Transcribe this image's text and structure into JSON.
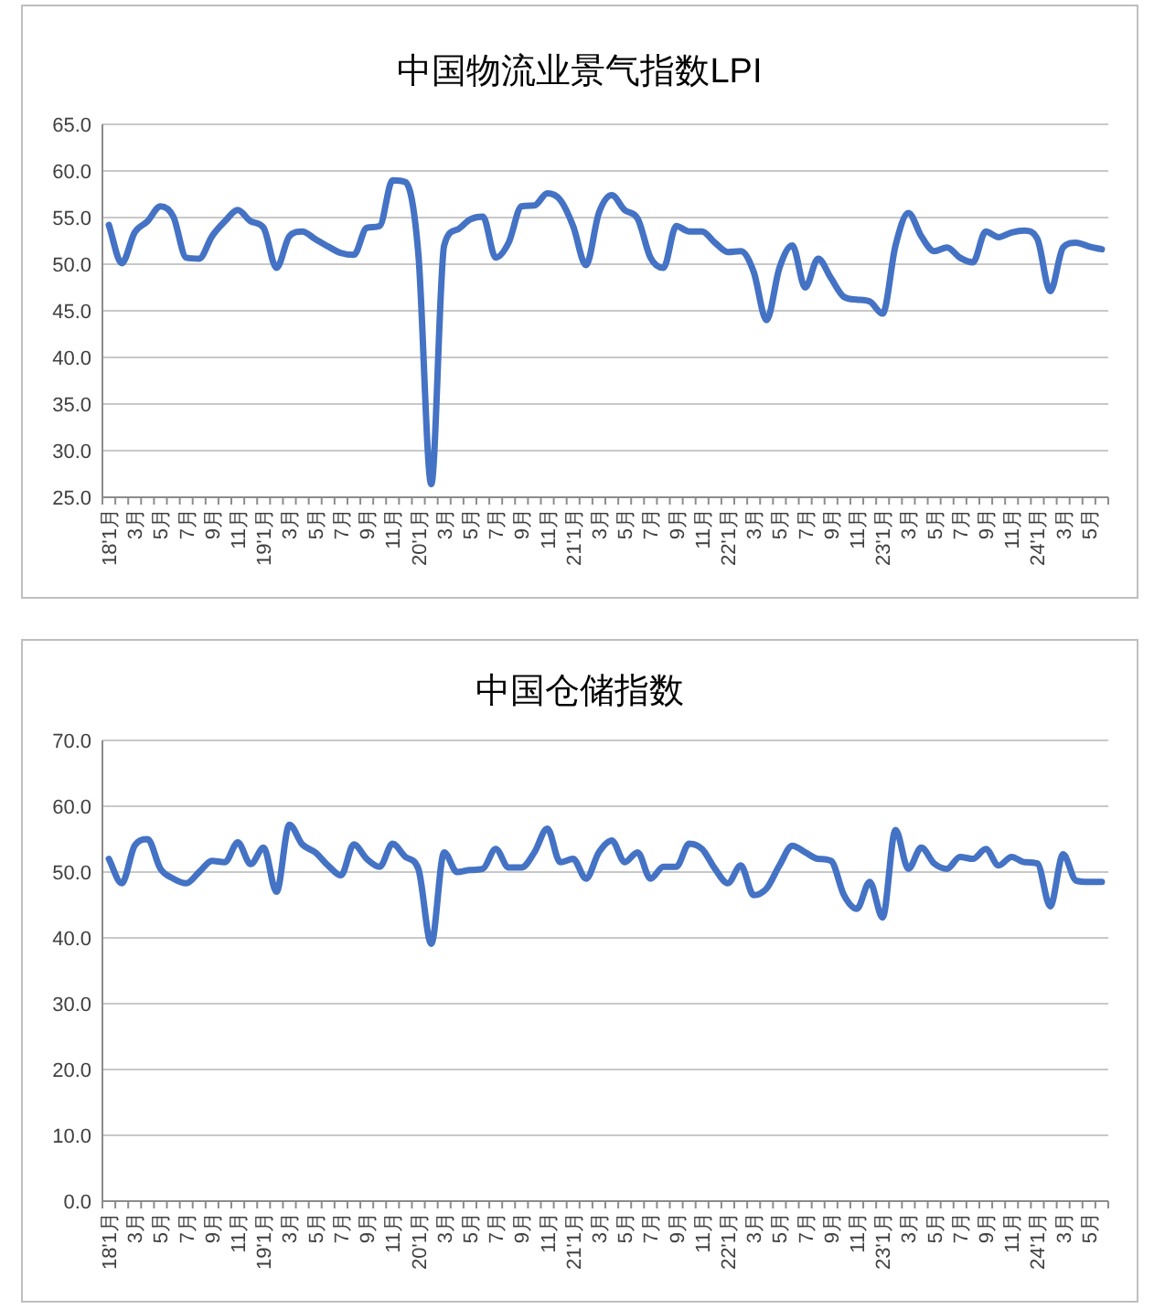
{
  "chart_data": [
    {
      "type": "line",
      "title": "中国物流业景气指数LPI",
      "categories": [
        "18'1月",
        null,
        "3月",
        null,
        "5月",
        null,
        "7月",
        null,
        "9月",
        null,
        "11月",
        null,
        "19'1月",
        null,
        "3月",
        null,
        "5月",
        null,
        "7月",
        null,
        "9月",
        null,
        "11月",
        null,
        "20'1月",
        null,
        "3月",
        null,
        "5月",
        null,
        "7月",
        null,
        "9月",
        null,
        "11月",
        null,
        "21'1月",
        null,
        "3月",
        null,
        "5月",
        null,
        "7月",
        null,
        "9月",
        null,
        "11月",
        null,
        "22'1月",
        null,
        "3月",
        null,
        "5月",
        null,
        "7月",
        null,
        "9月",
        null,
        "11月",
        null,
        "23'1月",
        null,
        "3月",
        null,
        "5月",
        null,
        "7月",
        null,
        "9月",
        null,
        "11月",
        null,
        "24'1月",
        null,
        "3月",
        null,
        "5月",
        null
      ],
      "series": [
        {
          "color": "#4472c4",
          "values": [
            54.2,
            50.1,
            53.4,
            54.6,
            56.2,
            55.1,
            50.7,
            50.6,
            53.0,
            54.6,
            55.8,
            54.6,
            53.9,
            49.6,
            53.0,
            53.5,
            52.7,
            51.9,
            51.2,
            51.0,
            53.9,
            54.1,
            59.0,
            58.8,
            51.1,
            26.4,
            52.0,
            53.7,
            54.8,
            55.1,
            50.7,
            52.3,
            56.2,
            56.3,
            57.6,
            56.9,
            54.1,
            49.9,
            55.5,
            57.4,
            55.8,
            54.9,
            50.7,
            49.6,
            54.1,
            53.5,
            53.5,
            52.3,
            51.3,
            51.4,
            49.2,
            44.0,
            49.6,
            52.0,
            47.5,
            50.6,
            48.5,
            46.5,
            46.2,
            46.0,
            44.7,
            52.0,
            55.5,
            53.0,
            51.4,
            51.8,
            50.7,
            50.2,
            53.5,
            52.9,
            53.4,
            53.6,
            52.7,
            47.1,
            51.8,
            52.3,
            51.9,
            51.6
          ]
        }
      ],
      "ylim": [
        25,
        65
      ],
      "yticks": [
        {
          "value": 25,
          "label": "25.0"
        },
        {
          "value": 30,
          "label": "30.0"
        },
        {
          "value": 35,
          "label": "35.0"
        },
        {
          "value": 40,
          "label": "40.0"
        },
        {
          "value": 45,
          "label": "45.0"
        },
        {
          "value": 50,
          "label": "50.0"
        },
        {
          "value": 55,
          "label": "55.0"
        },
        {
          "value": 60,
          "label": "60.0"
        },
        {
          "value": 65,
          "label": "65.0"
        }
      ],
      "grid": "y",
      "marker": "none",
      "line_style": "solid"
    },
    {
      "type": "line",
      "title": "中国仓储指数",
      "categories": [
        "18'1月",
        null,
        "3月",
        null,
        "5月",
        null,
        "7月",
        null,
        "9月",
        null,
        "11月",
        null,
        "19'1月",
        null,
        "3月",
        null,
        "5月",
        null,
        "7月",
        null,
        "9月",
        null,
        "11月",
        null,
        "20'1月",
        null,
        "3月",
        null,
        "5月",
        null,
        "7月",
        null,
        "9月",
        null,
        "11月",
        null,
        "21'1月",
        null,
        "3月",
        null,
        "5月",
        null,
        "7月",
        null,
        "9月",
        null,
        "11月",
        null,
        "22'1月",
        null,
        "3月",
        null,
        "5月",
        null,
        "7月",
        null,
        "9月",
        null,
        "11月",
        null,
        "23'1月",
        null,
        "3月",
        null,
        "5月",
        null,
        "7月",
        null,
        "9月",
        null,
        "11月",
        null,
        "24'1月",
        null,
        "3月",
        null,
        "5月",
        null
      ],
      "series": [
        {
          "color": "#4472c4",
          "values": [
            52.0,
            48.3,
            54.0,
            55.0,
            50.5,
            49.0,
            48.3,
            50.0,
            51.7,
            51.5,
            54.5,
            51.2,
            53.7,
            47.0,
            57.2,
            54.2,
            53.0,
            51.0,
            49.5,
            54.2,
            52.0,
            50.8,
            54.3,
            52.3,
            50.5,
            39.1,
            53.0,
            50.0,
            50.3,
            50.5,
            53.5,
            50.7,
            50.7,
            53.0,
            56.6,
            51.5,
            52.0,
            49.0,
            53.0,
            54.8,
            51.5,
            53.0,
            49.0,
            50.8,
            50.8,
            54.3,
            53.5,
            50.5,
            48.3,
            51.0,
            46.5,
            47.5,
            51.0,
            54.0,
            53.0,
            52.0,
            51.7,
            46.5,
            44.4,
            48.5,
            43.1,
            56.4,
            50.5,
            53.7,
            51.3,
            50.5,
            52.3,
            52.0,
            53.5,
            51.0,
            52.3,
            51.5,
            51.3,
            44.8,
            52.7,
            48.7,
            48.5,
            48.5
          ]
        }
      ],
      "ylim": [
        0,
        70
      ],
      "yticks": [
        {
          "value": 0,
          "label": "0.0"
        },
        {
          "value": 10,
          "label": "10.0"
        },
        {
          "value": 20,
          "label": "20.0"
        },
        {
          "value": 30,
          "label": "30.0"
        },
        {
          "value": 40,
          "label": "40.0"
        },
        {
          "value": 50,
          "label": "50.0"
        },
        {
          "value": 60,
          "label": "60.0"
        },
        {
          "value": 70,
          "label": "70.0"
        }
      ],
      "grid": "y",
      "marker": "none",
      "line_style": "solid"
    }
  ]
}
